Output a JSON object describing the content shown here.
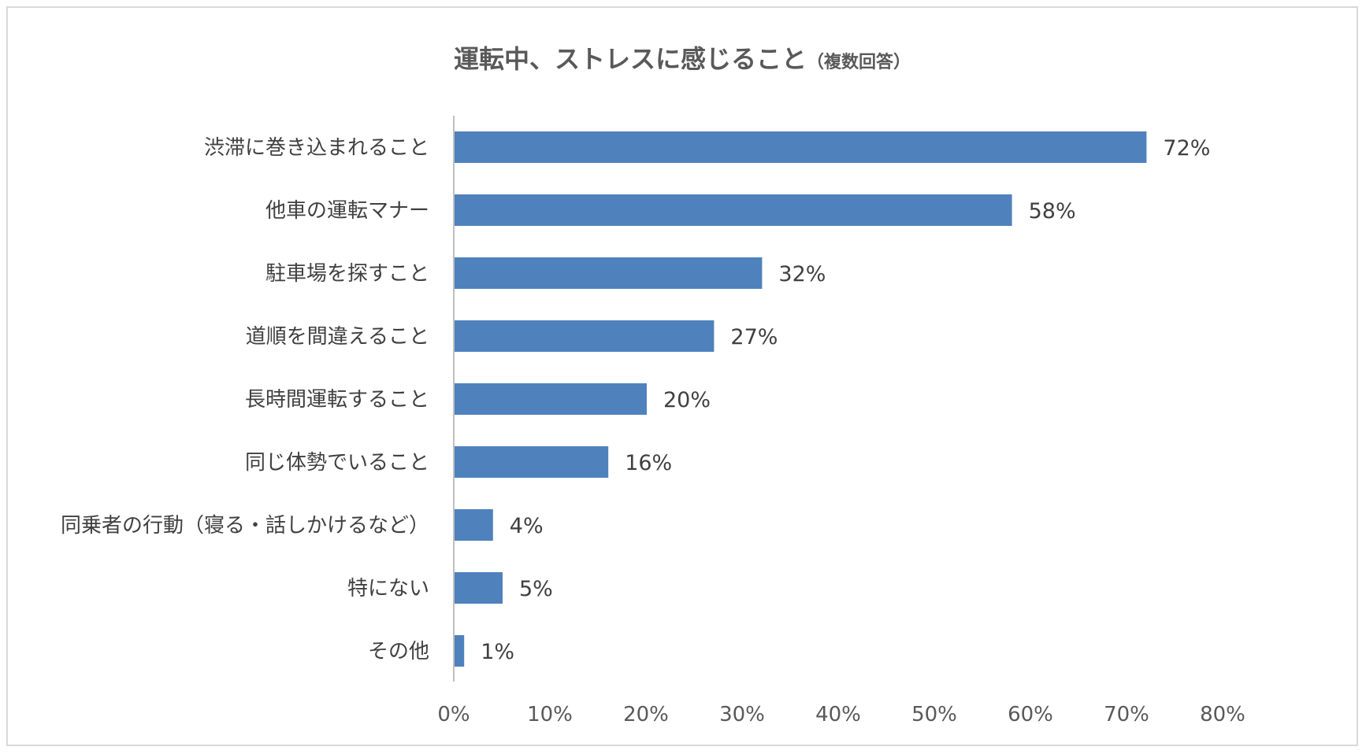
{
  "chart_data": {
    "type": "bar",
    "orientation": "horizontal",
    "title": "運転中、ストレスに感じること",
    "subtitle": "（複数回答）",
    "categories": [
      "渋滞に巻き込まれること",
      "他車の運転マナー",
      "駐車場を探すこと",
      "道順を間違えること",
      "長時間運転すること",
      "同じ体勢でいること",
      "同乗者の行動（寝る・話しかけるなど）",
      "特にない",
      "その他"
    ],
    "values": [
      72,
      58,
      32,
      27,
      20,
      16,
      4,
      5,
      1
    ],
    "data_labels": [
      "72%",
      "58%",
      "32%",
      "27%",
      "20%",
      "16%",
      "4%",
      "5%",
      "1%"
    ],
    "xlim": [
      0,
      80
    ],
    "x_ticks": [
      0,
      10,
      20,
      30,
      40,
      50,
      60,
      70,
      80
    ],
    "x_tick_labels": [
      "0%",
      "10%",
      "20%",
      "30%",
      "40%",
      "50%",
      "60%",
      "70%",
      "80%"
    ],
    "xlabel": "",
    "ylabel": "",
    "grid": false,
    "legend": "none",
    "bar_color": "#4f81bd"
  }
}
